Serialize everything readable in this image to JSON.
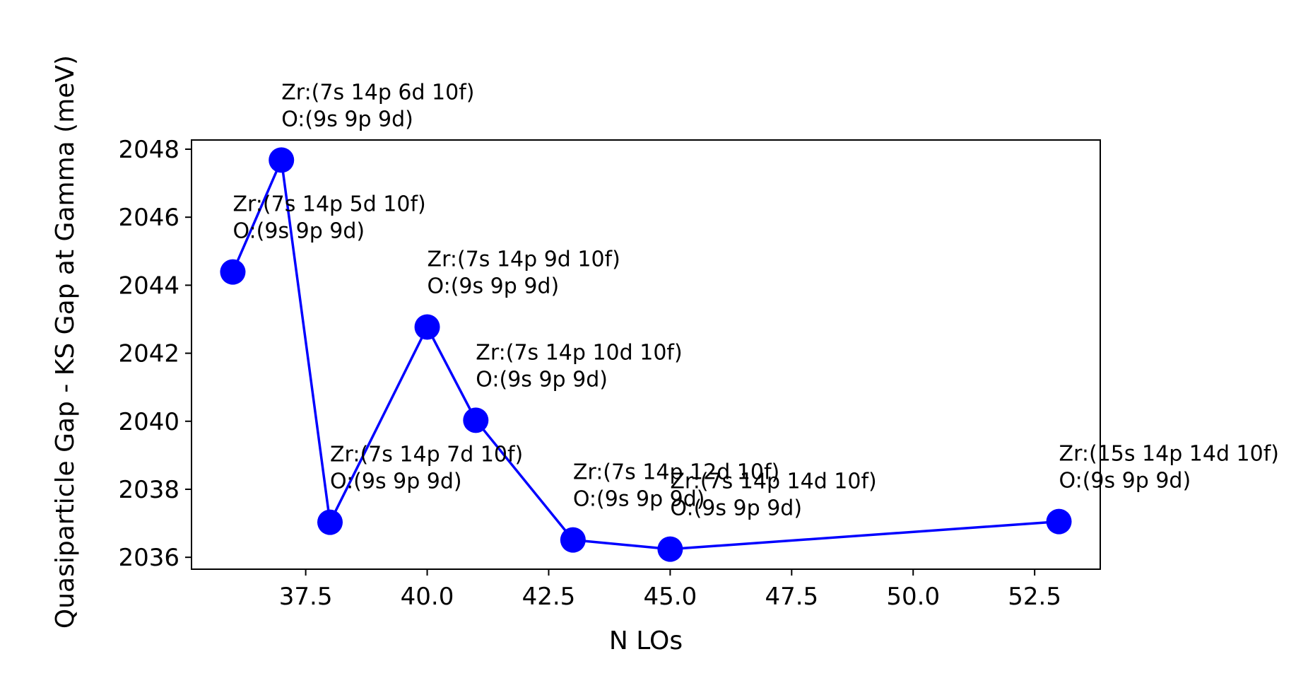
{
  "chart_data": {
    "type": "line",
    "title": "",
    "xlabel": "N LOs",
    "ylabel": "Quasiparticle Gap - KS Gap at Gamma (meV)",
    "xlim": [
      35.15,
      53.85
    ],
    "ylim": [
      2035.65,
      2048.27
    ],
    "xticks": [
      37.5,
      40.0,
      42.5,
      45.0,
      47.5,
      50.0,
      52.5
    ],
    "xtick_labels": [
      "37.5",
      "40.0",
      "42.5",
      "45.0",
      "47.5",
      "50.0",
      "52.5"
    ],
    "yticks": [
      2036,
      2038,
      2040,
      2042,
      2044,
      2046,
      2048
    ],
    "ytick_labels": [
      "2036",
      "2038",
      "2040",
      "2042",
      "2044",
      "2046",
      "2048"
    ],
    "grid": false,
    "legend": false,
    "series": [
      {
        "color": "#0000ff",
        "marker": "circle",
        "points": [
          {
            "x": 36,
            "y": 2044.39,
            "label": [
              "Zr:(7s 14p 5d 10f)",
              "O:(9s 9p 9d)"
            ]
          },
          {
            "x": 37,
            "y": 2047.68,
            "label": [
              "Zr:(7s 14p 6d 10f)",
              "O:(9s 9p 9d)"
            ]
          },
          {
            "x": 38,
            "y": 2037.03,
            "label": [
              "Zr:(7s 14p 7d 10f)",
              "O:(9s 9p 9d)"
            ]
          },
          {
            "x": 40,
            "y": 2042.77,
            "label": [
              "Zr:(7s 14p 9d 10f)",
              "O:(9s 9p 9d)"
            ]
          },
          {
            "x": 41,
            "y": 2040.03,
            "label": [
              "Zr:(7s 14p 10d 10f)",
              "O:(9s 9p 9d)"
            ]
          },
          {
            "x": 43,
            "y": 2036.51,
            "label": [
              "Zr:(7s 14p 12d 10f)",
              "O:(9s 9p 9d)"
            ]
          },
          {
            "x": 45,
            "y": 2036.24,
            "label": [
              "Zr:(7s 14p 14d 10f)",
              "O:(9s 9p 9d)"
            ]
          },
          {
            "x": 53,
            "y": 2037.05,
            "label": [
              "Zr:(15s 14p 14d 10f)",
              "O:(9s 9p 9d)"
            ]
          }
        ]
      }
    ]
  }
}
